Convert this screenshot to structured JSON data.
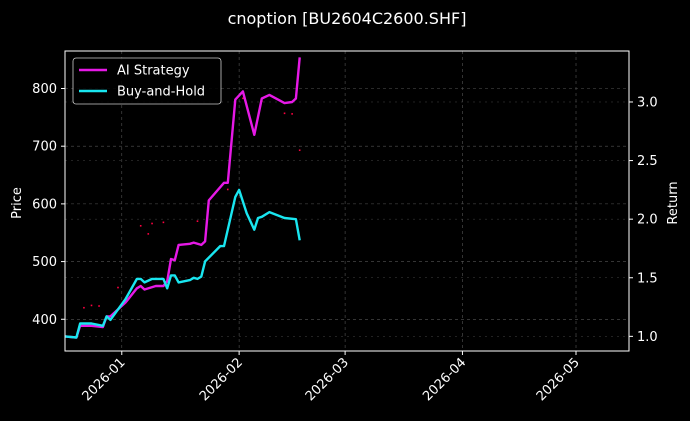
{
  "chart_data": {
    "type": "line",
    "title": "cnoption [BU2604C2600.SHF]",
    "xlabel": "",
    "ylabel": "Price",
    "y2label": "Return",
    "x_ticks": [
      "2026-01",
      "2026-02",
      "2026-03",
      "2026-04",
      "2026-05"
    ],
    "xlim": [
      "2025-12-17",
      "2026-05-15"
    ],
    "y_ticks": [
      400,
      500,
      600,
      700,
      800
    ],
    "ylim": [
      345,
      865
    ],
    "y2_ticks": [
      "1.0",
      "1.5",
      "2.0",
      "2.5",
      "3.0"
    ],
    "y2lim": [
      0.875,
      3.435
    ],
    "grid": true,
    "legend_position": "top-left",
    "colors": {
      "background": "#000000",
      "ai": "#e619e6",
      "bh": "#19e6f0",
      "dots": "#ff0040",
      "grid": "#555555"
    },
    "series": [
      {
        "name": "AI Strategy",
        "axis": "return",
        "points": [
          [
            "2025-12-17",
            1.0
          ],
          [
            "2025-12-20",
            0.99
          ],
          [
            "2025-12-21",
            1.09
          ],
          [
            "2025-12-24",
            1.09
          ],
          [
            "2025-12-27",
            1.08
          ],
          [
            "2025-12-28",
            1.17
          ],
          [
            "2025-12-29",
            1.17
          ],
          [
            "2026-01-02",
            1.29
          ],
          [
            "2026-01-05",
            1.41
          ],
          [
            "2026-01-06",
            1.43
          ],
          [
            "2026-01-07",
            1.4
          ],
          [
            "2026-01-10",
            1.43
          ],
          [
            "2026-01-12",
            1.43
          ],
          [
            "2026-01-13",
            1.47
          ],
          [
            "2026-01-14",
            1.66
          ],
          [
            "2026-01-15",
            1.65
          ],
          [
            "2026-01-16",
            1.78
          ],
          [
            "2026-01-19",
            1.79
          ],
          [
            "2026-01-20",
            1.8
          ],
          [
            "2026-01-22",
            1.78
          ],
          [
            "2026-01-23",
            1.81
          ],
          [
            "2026-01-24",
            2.16
          ],
          [
            "2026-01-28",
            2.31
          ],
          [
            "2026-01-29",
            2.31
          ],
          [
            "2026-01-31",
            3.02
          ],
          [
            "2026-02-02",
            3.09
          ],
          [
            "2026-02-05",
            2.72
          ],
          [
            "2026-02-07",
            3.03
          ],
          [
            "2026-02-09",
            3.06
          ],
          [
            "2026-02-13",
            2.99
          ],
          [
            "2026-02-15",
            3.0
          ],
          [
            "2026-02-16",
            3.03
          ],
          [
            "2026-02-17",
            3.38
          ]
        ]
      },
      {
        "name": "Buy-and-Hold",
        "axis": "return",
        "points": [
          [
            "2025-12-17",
            1.0
          ],
          [
            "2025-12-20",
            0.99
          ],
          [
            "2025-12-21",
            1.11
          ],
          [
            "2025-12-24",
            1.11
          ],
          [
            "2025-12-27",
            1.09
          ],
          [
            "2025-12-28",
            1.17
          ],
          [
            "2025-12-29",
            1.14
          ],
          [
            "2026-01-02",
            1.32
          ],
          [
            "2026-01-05",
            1.49
          ],
          [
            "2026-01-06",
            1.49
          ],
          [
            "2026-01-07",
            1.46
          ],
          [
            "2026-01-09",
            1.49
          ],
          [
            "2026-01-12",
            1.49
          ],
          [
            "2026-01-13",
            1.41
          ],
          [
            "2026-01-14",
            1.52
          ],
          [
            "2026-01-15",
            1.52
          ],
          [
            "2026-01-16",
            1.46
          ],
          [
            "2026-01-19",
            1.48
          ],
          [
            "2026-01-20",
            1.5
          ],
          [
            "2026-01-21",
            1.49
          ],
          [
            "2026-01-22",
            1.51
          ],
          [
            "2026-01-23",
            1.64
          ],
          [
            "2026-01-27",
            1.77
          ],
          [
            "2026-01-28",
            1.77
          ],
          [
            "2026-01-31",
            2.19
          ],
          [
            "2026-02-01",
            2.25
          ],
          [
            "2026-02-03",
            2.05
          ],
          [
            "2026-02-05",
            1.91
          ],
          [
            "2026-02-06",
            2.01
          ],
          [
            "2026-02-07",
            2.02
          ],
          [
            "2026-02-09",
            2.06
          ],
          [
            "2026-02-13",
            2.01
          ],
          [
            "2026-02-16",
            2.0
          ],
          [
            "2026-02-17",
            1.82
          ]
        ]
      }
    ],
    "price_markers": [
      [
        "2025-12-22",
        420
      ],
      [
        "2025-12-24",
        424
      ],
      [
        "2025-12-26",
        423
      ],
      [
        "2025-12-31",
        455
      ],
      [
        "2026-01-06",
        562
      ],
      [
        "2026-01-08",
        548
      ],
      [
        "2026-01-09",
        566
      ],
      [
        "2026-01-12",
        568
      ],
      [
        "2026-01-21",
        570
      ],
      [
        "2026-02-02",
        783
      ],
      [
        "2026-02-07",
        778
      ],
      [
        "2026-02-13",
        757
      ],
      [
        "2026-02-15",
        756
      ],
      [
        "2026-02-17",
        693
      ],
      [
        "2026-01-29",
        625
      ]
    ]
  }
}
